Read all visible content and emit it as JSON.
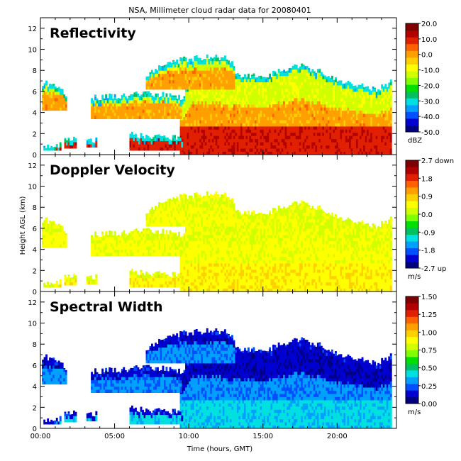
{
  "title": "NSA, Millimeter cloud radar data for 20080401",
  "xlabel": "Time (hours, GMT)",
  "ylabel": "Height AGL (km)",
  "colors": {
    "scale": [
      "#000080",
      "#0000d0",
      "#0050ff",
      "#00a0ff",
      "#00e0e0",
      "#00c060",
      "#00e000",
      "#80ff00",
      "#d0ff00",
      "#ffff00",
      "#ffd000",
      "#ffa000",
      "#ff6000",
      "#e02000",
      "#b00000",
      "#800000"
    ],
    "grid_background": "#ffffff"
  },
  "chart_data": [
    {
      "type": "heatmap",
      "title": "Reflectivity",
      "x": {
        "range": [
          0,
          24
        ],
        "ticks": [
          0,
          5,
          10,
          15,
          20
        ],
        "tick_labels": [
          "00:00",
          "05:00",
          "10:00",
          "15:00",
          "20:00"
        ]
      },
      "y": {
        "range": [
          0,
          13
        ],
        "ticks": [
          0,
          2,
          4,
          6,
          8,
          10,
          12
        ],
        "tick_labels": [
          "0",
          "2",
          "4",
          "6",
          "8",
          "10",
          "12"
        ]
      },
      "colorbar": {
        "range": [
          -50,
          20
        ],
        "tick_labels": [
          "20.0",
          "10.0",
          "0.0",
          "-10.0",
          "-20.0",
          "-30.0",
          "-40.0",
          "-50.0"
        ],
        "unit": "dBZ"
      },
      "value_profile": {
        "low_level": 10,
        "mid_level": 0,
        "upper_level": -12,
        "cloud_edge": -30
      }
    },
    {
      "type": "heatmap",
      "title": "Doppler Velocity",
      "x": {
        "range": [
          0,
          24
        ],
        "ticks": [
          0,
          5,
          10,
          15,
          20
        ],
        "tick_labels": [
          "00:00",
          "05:00",
          "10:00",
          "15:00",
          "20:00"
        ]
      },
      "y": {
        "range": [
          0,
          13
        ],
        "ticks": [
          0,
          2,
          4,
          6,
          8,
          10,
          12
        ],
        "tick_labels": [
          "0",
          "2",
          "4",
          "6",
          "8",
          "10",
          "12"
        ]
      },
      "colorbar": {
        "range": [
          -2.7,
          2.7
        ],
        "tick_labels": [
          "2.7 down",
          "1.8",
          "0.9",
          "0.0",
          "-0.9",
          "-1.8",
          "-2.7 up"
        ],
        "unit": "m/s"
      },
      "value_profile": {
        "low_level": 0.6,
        "mid_level": 0.45,
        "upper_level": 0.35,
        "cloud_edge": 0.3
      }
    },
    {
      "type": "heatmap",
      "title": "Spectral Width",
      "x": {
        "range": [
          0,
          24
        ],
        "ticks": [
          0,
          5,
          10,
          15,
          20
        ],
        "tick_labels": [
          "00:00",
          "05:00",
          "10:00",
          "15:00",
          "20:00"
        ]
      },
      "y": {
        "range": [
          0,
          13
        ],
        "ticks": [
          0,
          2,
          4,
          6,
          8,
          10,
          12
        ],
        "tick_labels": [
          "0",
          "2",
          "4",
          "6",
          "8",
          "10",
          "12"
        ]
      },
      "colorbar": {
        "range": [
          0,
          1.5
        ],
        "tick_labels": [
          "1.50",
          "1.25",
          "1.00",
          "0.75",
          "0.50",
          "0.25",
          "0.00"
        ],
        "unit": "m/s"
      },
      "value_profile": {
        "low_level": 0.4,
        "mid_level": 0.3,
        "upper_level": 0.12,
        "cloud_edge": 0.15
      }
    }
  ],
  "cloud_regions": [
    {
      "name": "main_cloud",
      "x_start": 9.4,
      "x_end": 23.6,
      "tops": [
        [
          9.4,
          5.0
        ],
        [
          10.2,
          7.8
        ],
        [
          11.5,
          8.0
        ],
        [
          12.8,
          7.5
        ],
        [
          14.0,
          7.4
        ],
        [
          15.5,
          7.6
        ],
        [
          16.5,
          8.2
        ],
        [
          17.5,
          8.4
        ],
        [
          18.6,
          8.0
        ],
        [
          19.5,
          7.4
        ],
        [
          20.5,
          6.8
        ],
        [
          21.5,
          6.6
        ],
        [
          22.5,
          6.2
        ],
        [
          23.2,
          6.5
        ],
        [
          23.6,
          7.0
        ]
      ],
      "base": 0.0
    },
    {
      "name": "upper_anvil",
      "x_start": 7.1,
      "x_end": 13.0,
      "tops": [
        [
          7.1,
          7.4
        ],
        [
          7.8,
          8.2
        ],
        [
          8.6,
          8.8
        ],
        [
          9.5,
          9.0
        ],
        [
          10.5,
          9.2
        ],
        [
          11.5,
          9.3
        ],
        [
          12.5,
          9.2
        ],
        [
          13.0,
          8.4
        ]
      ],
      "base": 6.2
    },
    {
      "name": "early_layer_a",
      "x_start": 0.1,
      "x_end": 1.7,
      "tops": [
        [
          0.1,
          6.8
        ],
        [
          0.8,
          6.6
        ],
        [
          1.2,
          6.3
        ],
        [
          1.7,
          5.5
        ]
      ],
      "base": 4.2
    },
    {
      "name": "early_layer_b",
      "x_start": 3.4,
      "x_end": 9.5,
      "tops": [
        [
          3.4,
          5.4
        ],
        [
          5.5,
          5.6
        ],
        [
          7.5,
          5.8
        ],
        [
          9.0,
          5.6
        ],
        [
          9.5,
          5.2
        ]
      ],
      "base": 3.4
    },
    {
      "name": "low_layer",
      "x_start": 6.0,
      "x_end": 9.5,
      "tops": [
        [
          6.0,
          1.9
        ],
        [
          8.0,
          1.7
        ],
        [
          9.5,
          1.5
        ]
      ],
      "base": 0.4
    },
    {
      "name": "blob_1",
      "x_start": 1.6,
      "x_end": 2.4,
      "tops": [
        [
          1.6,
          1.6
        ],
        [
          2.4,
          1.4
        ]
      ],
      "base": 0.6
    },
    {
      "name": "blob_2",
      "x_start": 3.1,
      "x_end": 3.8,
      "tops": [
        [
          3.1,
          1.5
        ],
        [
          3.8,
          1.4
        ]
      ],
      "base": 0.7
    },
    {
      "name": "blob_3",
      "x_start": 0.2,
      "x_end": 1.4,
      "tops": [
        [
          0.2,
          0.9
        ],
        [
          1.4,
          0.9
        ]
      ],
      "base": 0.4
    }
  ]
}
